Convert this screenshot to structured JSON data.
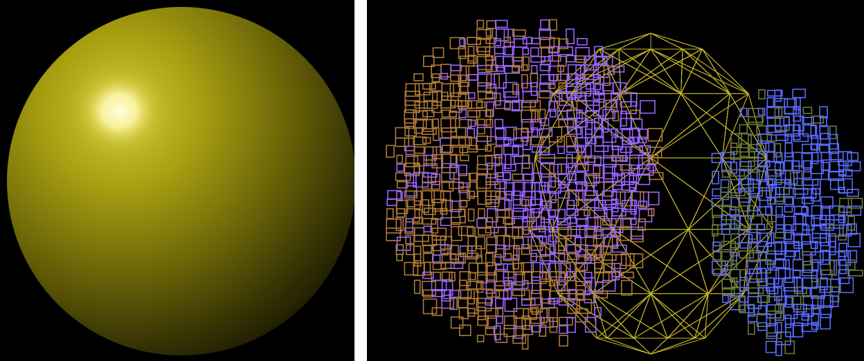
{
  "panels": [
    {
      "id": "shaded-sphere",
      "background": "#000000",
      "sphere_color": "#a8a010",
      "highlight_color": "#fffbd0"
    },
    {
      "id": "wireframe-sphere-slices",
      "background": "#000000",
      "colors": {
        "violet": "#9966ff",
        "brown": "#b07a3a",
        "blue": "#5a6cff",
        "olive": "#6b7a3a",
        "geodesic": "#c8b82a"
      }
    }
  ]
}
